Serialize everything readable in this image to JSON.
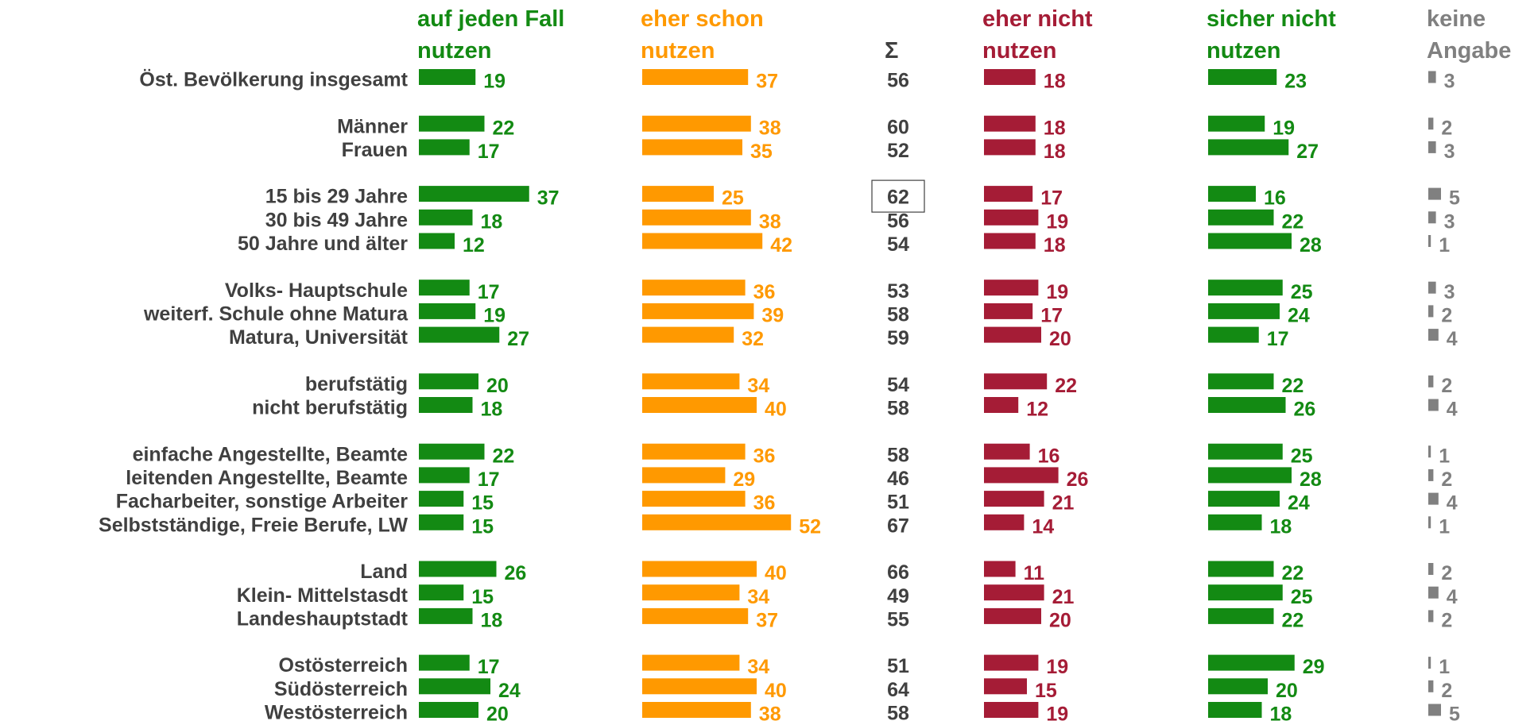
{
  "chart_data": {
    "type": "bar",
    "categories": [
      "Öst. Bevölkerung insgesamt",
      "Männer",
      "Frauen",
      "15 bis 29 Jahre",
      "30 bis 49 Jahre",
      "50 Jahre und älter",
      "Volks- Hauptschule",
      "weiterf. Schule ohne Matura",
      "Matura, Universität",
      "berufstätig",
      "nicht berufstätig",
      "einfache Angestellte, Beamte",
      "leitenden Angestellte, Beamte",
      "Facharbeiter, sonstige Arbeiter",
      "Selbstständige, Freie Berufe, LW",
      "Land",
      "Klein- Mittelstasdt",
      "Landeshauptstadt",
      "Ostösterreich",
      "Südösterreich",
      "Westösterreich"
    ],
    "series": [
      {
        "name": "auf jeden Fall nutzen",
        "color": "#138a13",
        "values": [
          19,
          22,
          17,
          37,
          18,
          12,
          17,
          19,
          27,
          20,
          18,
          22,
          17,
          15,
          15,
          26,
          15,
          18,
          17,
          24,
          20
        ]
      },
      {
        "name": "eher schon nutzen",
        "color": "#ff9900",
        "values": [
          37,
          38,
          35,
          25,
          38,
          42,
          36,
          39,
          32,
          34,
          40,
          36,
          29,
          36,
          52,
          40,
          34,
          37,
          34,
          40,
          38
        ]
      },
      {
        "name": "eher nicht nutzen",
        "color": "#a51c36",
        "values": [
          18,
          18,
          18,
          17,
          19,
          18,
          19,
          17,
          20,
          22,
          12,
          16,
          26,
          21,
          14,
          11,
          21,
          20,
          19,
          15,
          19
        ]
      },
      {
        "name": "sicher nicht nutzen",
        "color": "#138a13",
        "values": [
          23,
          19,
          27,
          16,
          22,
          28,
          25,
          24,
          17,
          22,
          26,
          25,
          28,
          24,
          18,
          22,
          25,
          22,
          29,
          20,
          18
        ]
      },
      {
        "name": "keine Angabe",
        "color": "#808080",
        "values": [
          3,
          2,
          3,
          5,
          3,
          1,
          3,
          2,
          4,
          2,
          4,
          1,
          2,
          4,
          1,
          2,
          4,
          2,
          1,
          2,
          5
        ]
      }
    ],
    "sum": {
      "name": "Σ",
      "color": "#404040",
      "values": [
        56,
        60,
        52,
        62,
        56,
        54,
        53,
        58,
        59,
        54,
        58,
        58,
        46,
        51,
        67,
        66,
        49,
        55,
        51,
        64,
        58
      ]
    }
  }
}
